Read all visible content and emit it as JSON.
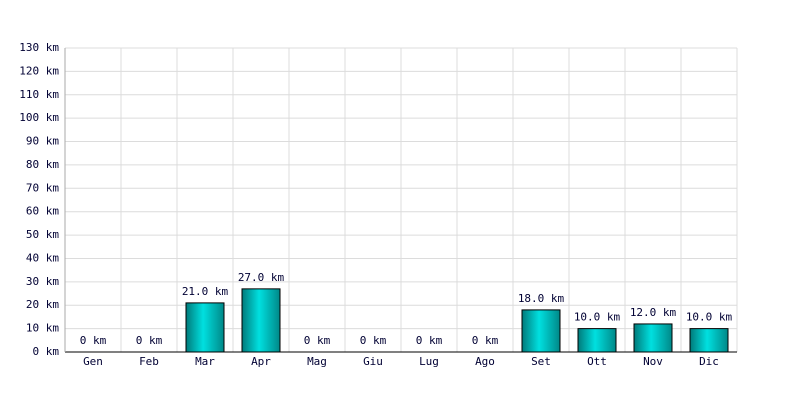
{
  "chart_data": {
    "type": "bar",
    "categories": [
      "Gen",
      "Feb",
      "Mar",
      "Apr",
      "Mag",
      "Giu",
      "Lug",
      "Ago",
      "Set",
      "Ott",
      "Nov",
      "Dic"
    ],
    "values": [
      0,
      0,
      21,
      27,
      0,
      0,
      0,
      0,
      18,
      10,
      12,
      10
    ],
    "value_labels": [
      "0 km",
      "0 km",
      "21.0 km",
      "27.0 km",
      "0 km",
      "0 km",
      "0 km",
      "0 km",
      "18.0 km",
      "10.0 km",
      "12.0 km",
      "10.0 km"
    ],
    "color": "#00e0e0",
    "ylim": [
      0,
      130
    ],
    "yticks": [
      {
        "value": 0,
        "label": "0 km"
      },
      {
        "value": 10,
        "label": "10 km"
      },
      {
        "value": 20,
        "label": "20 km"
      },
      {
        "value": 30,
        "label": "30 km"
      },
      {
        "value": 40,
        "label": "40 km"
      },
      {
        "value": 50,
        "label": "50 km"
      },
      {
        "value": 60,
        "label": "60 km"
      },
      {
        "value": 70,
        "label": "70 km"
      },
      {
        "value": 80,
        "label": "80 km"
      },
      {
        "value": 90,
        "label": "90 km"
      },
      {
        "value": 100,
        "label": "100 km"
      },
      {
        "value": 110,
        "label": "110 km"
      },
      {
        "value": 120,
        "label": "120 km"
      },
      {
        "value": 130,
        "label": "130 km"
      }
    ],
    "grid": true
  }
}
